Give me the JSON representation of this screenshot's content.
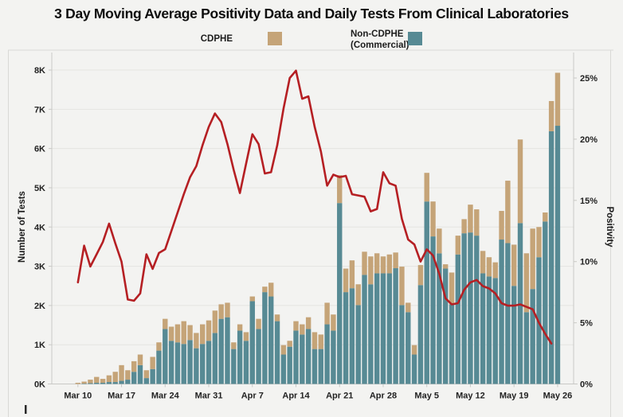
{
  "title": "3 Day Moving Average Positivity Data and Daily Tests From Clinical Laboratories",
  "legend": {
    "cdphe_label": "CDPHE",
    "non_cdphe_label_line1": "Non-CDPHE",
    "non_cdphe_label_line2": "(Commercial)"
  },
  "axes": {
    "left_title": "Number of Tests",
    "right_title": "Positivity",
    "left_ticks": [
      "0K",
      "1K",
      "2K",
      "3K",
      "4K",
      "5K",
      "6K",
      "7K",
      "8K"
    ],
    "right_ticks": [
      "0%",
      "5%",
      "10%",
      "15%",
      "20%",
      "25%"
    ],
    "x_ticks": [
      "Mar 10",
      "Mar 17",
      "Mar 24",
      "Mar 31",
      "Apr 7",
      "Apr 14",
      "Apr 21",
      "Apr 28",
      "May 5",
      "May 12",
      "May 19",
      "May 26"
    ]
  },
  "colors": {
    "cdphe": "#c5a478",
    "non_cdphe": "#578a94",
    "positivity_line": "#b51f23",
    "grid": "#e4e4e1",
    "axis_line": "#c9c9c6",
    "frame": "#d9d9d6",
    "background": "#f3f3f1"
  },
  "chart_data": {
    "type": "combo",
    "title": "3 Day Moving Average Positivity Data and Daily Tests From Clinical Laboratories",
    "x": [
      "Mar 10",
      "Mar 11",
      "Mar 12",
      "Mar 13",
      "Mar 14",
      "Mar 15",
      "Mar 16",
      "Mar 17",
      "Mar 18",
      "Mar 19",
      "Mar 20",
      "Mar 21",
      "Mar 22",
      "Mar 23",
      "Mar 24",
      "Mar 25",
      "Mar 26",
      "Mar 27",
      "Mar 28",
      "Mar 29",
      "Mar 30",
      "Mar 31",
      "Apr 1",
      "Apr 2",
      "Apr 3",
      "Apr 4",
      "Apr 5",
      "Apr 6",
      "Apr 7",
      "Apr 8",
      "Apr 9",
      "Apr 10",
      "Apr 11",
      "Apr 12",
      "Apr 13",
      "Apr 14",
      "Apr 15",
      "Apr 16",
      "Apr 17",
      "Apr 18",
      "Apr 19",
      "Apr 20",
      "Apr 21",
      "Apr 22",
      "Apr 23",
      "Apr 24",
      "Apr 25",
      "Apr 26",
      "Apr 27",
      "Apr 28",
      "Apr 29",
      "Apr 30",
      "May 1",
      "May 2",
      "May 3",
      "May 4",
      "May 5",
      "May 6",
      "May 7",
      "May 8",
      "May 9",
      "May 10",
      "May 11",
      "May 12",
      "May 13",
      "May 14",
      "May 15",
      "May 16",
      "May 17",
      "May 18",
      "May 19",
      "May 20",
      "May 21",
      "May 22",
      "May 23",
      "May 24",
      "May 25",
      "May 26"
    ],
    "x_tick_every": 7,
    "series": [
      {
        "name": "Non-CDPHE (Commercial)",
        "type": "bar-stack",
        "axis": "left",
        "color_key": "non_cdphe",
        "values": [
          0,
          10,
          20,
          30,
          30,
          50,
          50,
          80,
          110,
          310,
          480,
          150,
          380,
          850,
          1400,
          1100,
          1060,
          1020,
          1120,
          910,
          1020,
          1100,
          1300,
          1660,
          1700,
          890,
          1360,
          1100,
          2110,
          1400,
          2340,
          2230,
          1600,
          750,
          950,
          1360,
          1260,
          1400,
          890,
          890,
          1520,
          1360,
          4610,
          2340,
          2440,
          2010,
          2780,
          2540,
          2820,
          2820,
          2820,
          2950,
          2010,
          1830,
          750,
          2520,
          4650,
          3760,
          3330,
          2940,
          2030,
          3300,
          3840,
          3860,
          3780,
          2820,
          2740,
          2700,
          3680,
          3590,
          2500,
          4100,
          1830,
          2420,
          3230,
          4140,
          6440,
          6580
        ]
      },
      {
        "name": "CDPHE",
        "type": "bar-stack",
        "axis": "left",
        "color_key": "cdphe",
        "values": [
          30,
          50,
          90,
          150,
          100,
          170,
          260,
          400,
          240,
          270,
          270,
          200,
          310,
          210,
          260,
          360,
          460,
          580,
          380,
          390,
          500,
          520,
          570,
          370,
          370,
          170,
          160,
          220,
          120,
          260,
          140,
          350,
          170,
          240,
          150,
          240,
          260,
          300,
          430,
          370,
          550,
          410,
          710,
          600,
          710,
          530,
          590,
          710,
          510,
          430,
          480,
          400,
          980,
          240,
          240,
          510,
          730,
          890,
          630,
          110,
          810,
          480,
          360,
          710,
          670,
          570,
          490,
          400,
          730,
          1590,
          1050,
          2130,
          1500,
          1540,
          770,
          230,
          770,
          1350
        ]
      },
      {
        "name": "3 Day Moving Average Positivity",
        "type": "line",
        "axis": "right",
        "color_key": "positivity_line",
        "values": [
          8.3,
          11.3,
          9.6,
          10.6,
          11.6,
          13.1,
          11.5,
          10.0,
          6.9,
          6.8,
          7.4,
          10.6,
          9.4,
          10.7,
          11.0,
          12.5,
          14.0,
          15.5,
          16.9,
          17.8,
          19.5,
          21.0,
          22.1,
          21.4,
          19.6,
          17.5,
          15.6,
          18.0,
          20.4,
          19.6,
          17.2,
          17.3,
          19.5,
          22.5,
          25.0,
          25.6,
          23.3,
          23.5,
          21.0,
          19.0,
          16.2,
          17.1,
          16.9,
          17.0,
          15.5,
          15.4,
          15.3,
          14.1,
          14.3,
          17.3,
          16.4,
          16.2,
          13.5,
          11.8,
          11.4,
          10.0,
          11.0,
          10.5,
          9.0,
          7.0,
          6.5,
          6.6,
          7.7,
          8.3,
          8.5,
          8.0,
          7.8,
          7.4,
          6.6,
          6.4,
          6.4,
          6.5,
          6.3,
          6.1,
          5.0,
          4.1,
          3.3,
          null
        ]
      }
    ],
    "left_axis": {
      "label": "Number of Tests",
      "range": [
        0,
        8000
      ],
      "tick_step": 1000,
      "tick_labels": [
        "0K",
        "1K",
        "2K",
        "3K",
        "4K",
        "5K",
        "6K",
        "7K",
        "8K"
      ]
    },
    "right_axis": {
      "label": "Positivity",
      "range": [
        0,
        25
      ],
      "tick_step": 5,
      "tick_labels": [
        "0%",
        "5%",
        "10%",
        "15%",
        "20%",
        "25%"
      ]
    },
    "grid": true,
    "legend_position": "top"
  }
}
